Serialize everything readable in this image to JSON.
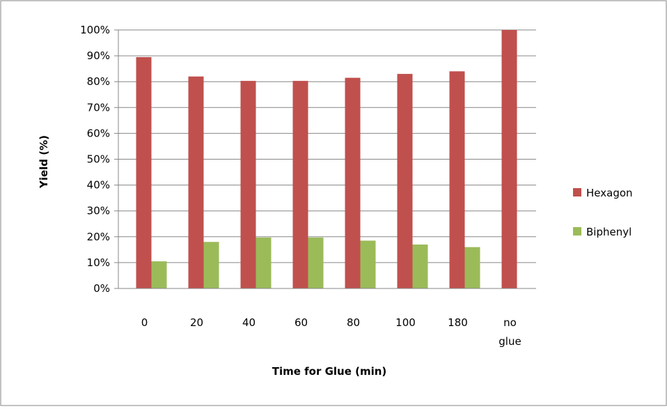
{
  "chart_data": {
    "type": "bar",
    "categories": [
      "0",
      "20",
      "40",
      "60",
      "80",
      "100",
      "180",
      "no glue"
    ],
    "series": [
      {
        "name": "Hexagon",
        "values": [
          0.895,
          0.82,
          0.803,
          0.803,
          0.815,
          0.83,
          0.84,
          1.0
        ],
        "color": "#c0504d"
      },
      {
        "name": "Biphenyl",
        "values": [
          0.105,
          0.18,
          0.197,
          0.197,
          0.185,
          0.17,
          0.16,
          0.0
        ],
        "color": "#9bbb59"
      }
    ],
    "xlabel": "Time for Glue (min)",
    "ylabel": "Yield (%)",
    "ylim": [
      0,
      1
    ],
    "yticks": [
      "0%",
      "10%",
      "20%",
      "30%",
      "40%",
      "50%",
      "60%",
      "70%",
      "80%",
      "90%",
      "100%"
    ],
    "grid": true,
    "legend": "right"
  }
}
